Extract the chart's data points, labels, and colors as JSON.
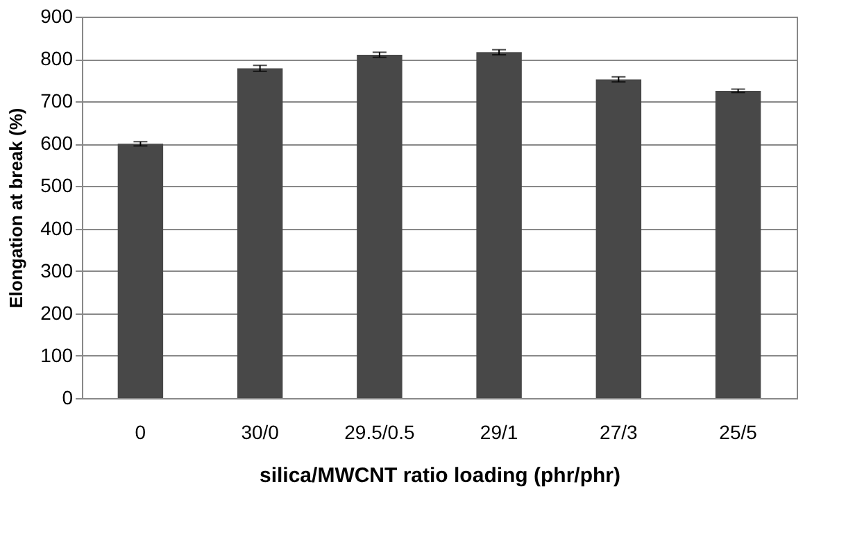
{
  "chart_data": {
    "type": "bar",
    "xlabel": "silica/MWCNT ratio loading (phr/phr)",
    "ylabel": "Elongation at break (%)",
    "categories": [
      "0",
      "30/0",
      "29.5/0.5",
      "29/1",
      "27/3",
      "25/5"
    ],
    "values": [
      600,
      778,
      810,
      816,
      752,
      725
    ],
    "errors": [
      5,
      7,
      6,
      6,
      6,
      4
    ],
    "color": "#484848",
    "ylim": [
      0,
      900
    ],
    "yticks": [
      0,
      100,
      200,
      300,
      400,
      500,
      600,
      700,
      800,
      900
    ],
    "grid": "y"
  }
}
